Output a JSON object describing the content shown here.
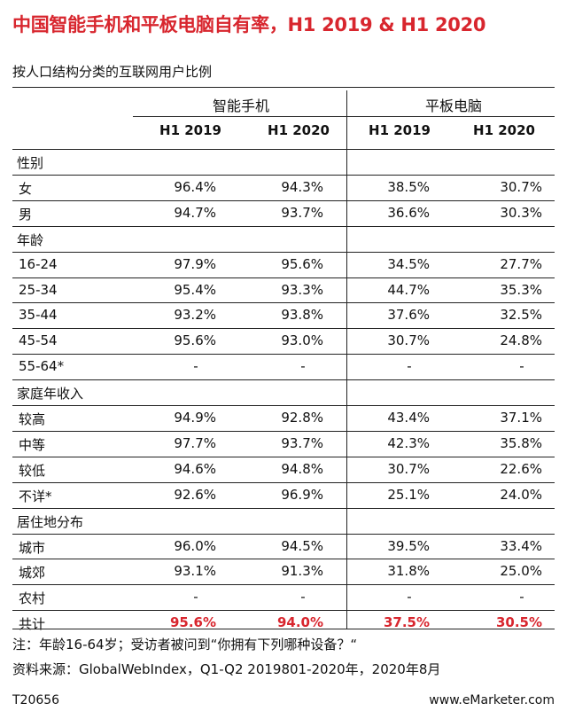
{
  "title": "中国智能手机和平板电脑自有率，H1 2019 & H1 2020",
  "subtitle": "按人口结构分类的互联网用户比例",
  "groups": {
    "phone": "智能手机",
    "tablet": "平板电脑"
  },
  "columns": [
    "H1 2019",
    "H1 2020",
    "H1 2019",
    "H1 2020"
  ],
  "chart_data": {
    "type": "table",
    "title": "中国智能手机和平板电脑自有率，H1 2019 & H1 2020",
    "subtitle": "按人口结构分类的互联网用户比例",
    "column_groups": [
      "智能手机",
      "平板电脑"
    ],
    "columns": [
      "H1 2019",
      "H1 2020",
      "H1 2019",
      "H1 2020"
    ],
    "rows": [
      {
        "label": "性别",
        "section": true,
        "values": []
      },
      {
        "label": "女",
        "values": [
          "96.4%",
          "94.3%",
          "38.5%",
          "30.7%"
        ]
      },
      {
        "label": "男",
        "values": [
          "94.7%",
          "93.7%",
          "36.6%",
          "30.3%"
        ]
      },
      {
        "label": "年龄",
        "section": true,
        "values": []
      },
      {
        "label": "16-24",
        "values": [
          "97.9%",
          "95.6%",
          "34.5%",
          "27.7%"
        ]
      },
      {
        "label": "25-34",
        "values": [
          "95.4%",
          "93.3%",
          "44.7%",
          "35.3%"
        ]
      },
      {
        "label": "35-44",
        "values": [
          "93.2%",
          "93.8%",
          "37.6%",
          "32.5%"
        ]
      },
      {
        "label": "45-54",
        "values": [
          "95.6%",
          "93.0%",
          "30.7%",
          "24.8%"
        ]
      },
      {
        "label": "55-64*",
        "values": [
          "-",
          "-",
          "-",
          "-"
        ]
      },
      {
        "label": "家庭年收入",
        "section": true,
        "values": []
      },
      {
        "label": "较高",
        "values": [
          "94.9%",
          "92.8%",
          "43.4%",
          "37.1%"
        ]
      },
      {
        "label": "中等",
        "values": [
          "97.7%",
          "93.7%",
          "42.3%",
          "35.8%"
        ]
      },
      {
        "label": "较低",
        "values": [
          "94.6%",
          "94.8%",
          "30.7%",
          "22.6%"
        ]
      },
      {
        "label": "不详*",
        "values": [
          "92.6%",
          "96.9%",
          "25.1%",
          "24.0%"
        ]
      },
      {
        "label": "居住地分布",
        "section": true,
        "values": []
      },
      {
        "label": "城市",
        "values": [
          "96.0%",
          "94.5%",
          "39.5%",
          "33.4%"
        ]
      },
      {
        "label": "城郊",
        "values": [
          "93.1%",
          "91.3%",
          "31.8%",
          "25.0%"
        ]
      },
      {
        "label": "农村",
        "values": [
          "-",
          "-",
          "-",
          "-"
        ]
      },
      {
        "label": "共计",
        "total": true,
        "values": [
          "95.6%",
          "94.0%",
          "37.5%",
          "30.5%"
        ]
      }
    ]
  },
  "notes": {
    "note": "注：年龄16-64岁；受访者被问到“你拥有下列哪种设备？“",
    "source": "资料来源：GlobalWebIndex，Q1-Q2 2019801-2020年，2020年8月"
  },
  "footer": {
    "id": "T20656",
    "site": "www.eMarketer.com"
  },
  "colors": {
    "accent": "#d8262e",
    "rule": "#222222"
  }
}
